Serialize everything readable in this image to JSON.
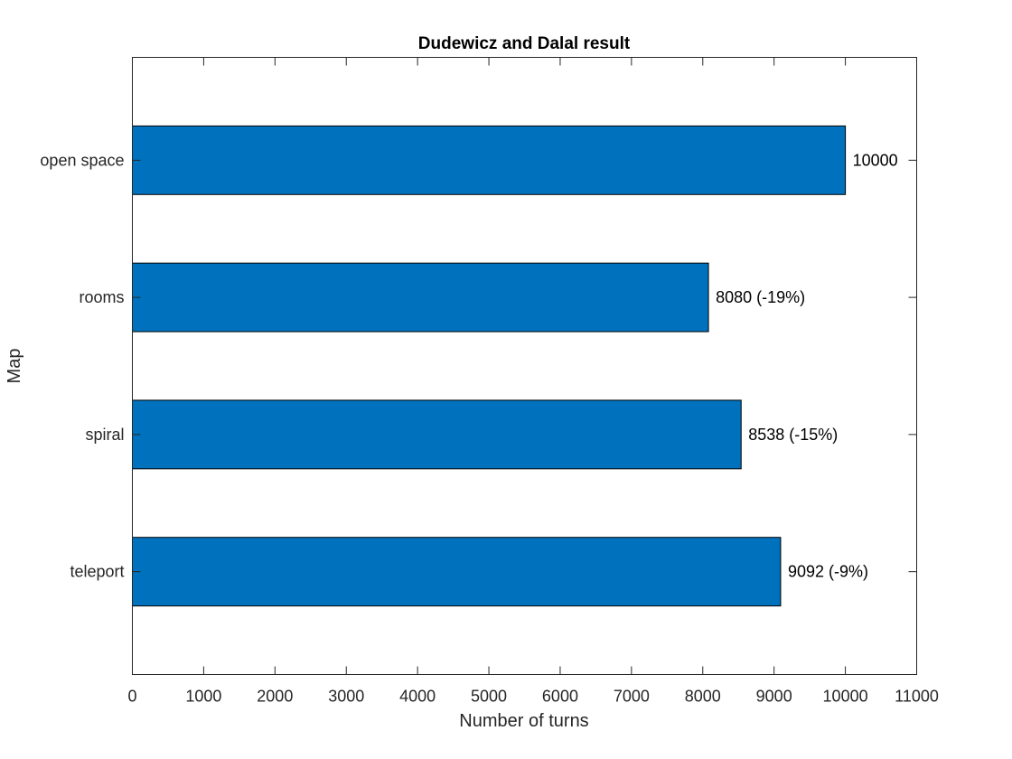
{
  "chart_data": {
    "type": "bar",
    "orientation": "horizontal",
    "title": "Dudewicz and Dalal result",
    "xlabel": "Number of turns",
    "ylabel": "Map",
    "categories": [
      "open space",
      "rooms",
      "spiral",
      "teleport"
    ],
    "values": [
      10000,
      8080,
      8538,
      9092
    ],
    "data_labels": [
      "10000",
      "8080 (-19%)",
      "8538 (-15%)",
      "9092 (-9%)"
    ],
    "xlim": [
      0,
      11000
    ],
    "xticks": [
      0,
      1000,
      2000,
      3000,
      4000,
      5000,
      6000,
      7000,
      8000,
      9000,
      10000,
      11000
    ],
    "xtick_labels": [
      "0",
      "1000",
      "2000",
      "3000",
      "4000",
      "5000",
      "6000",
      "7000",
      "8000",
      "9000",
      "10000",
      "11000"
    ],
    "bar_color": "#0072BD",
    "grid": false,
    "legend": "none"
  }
}
